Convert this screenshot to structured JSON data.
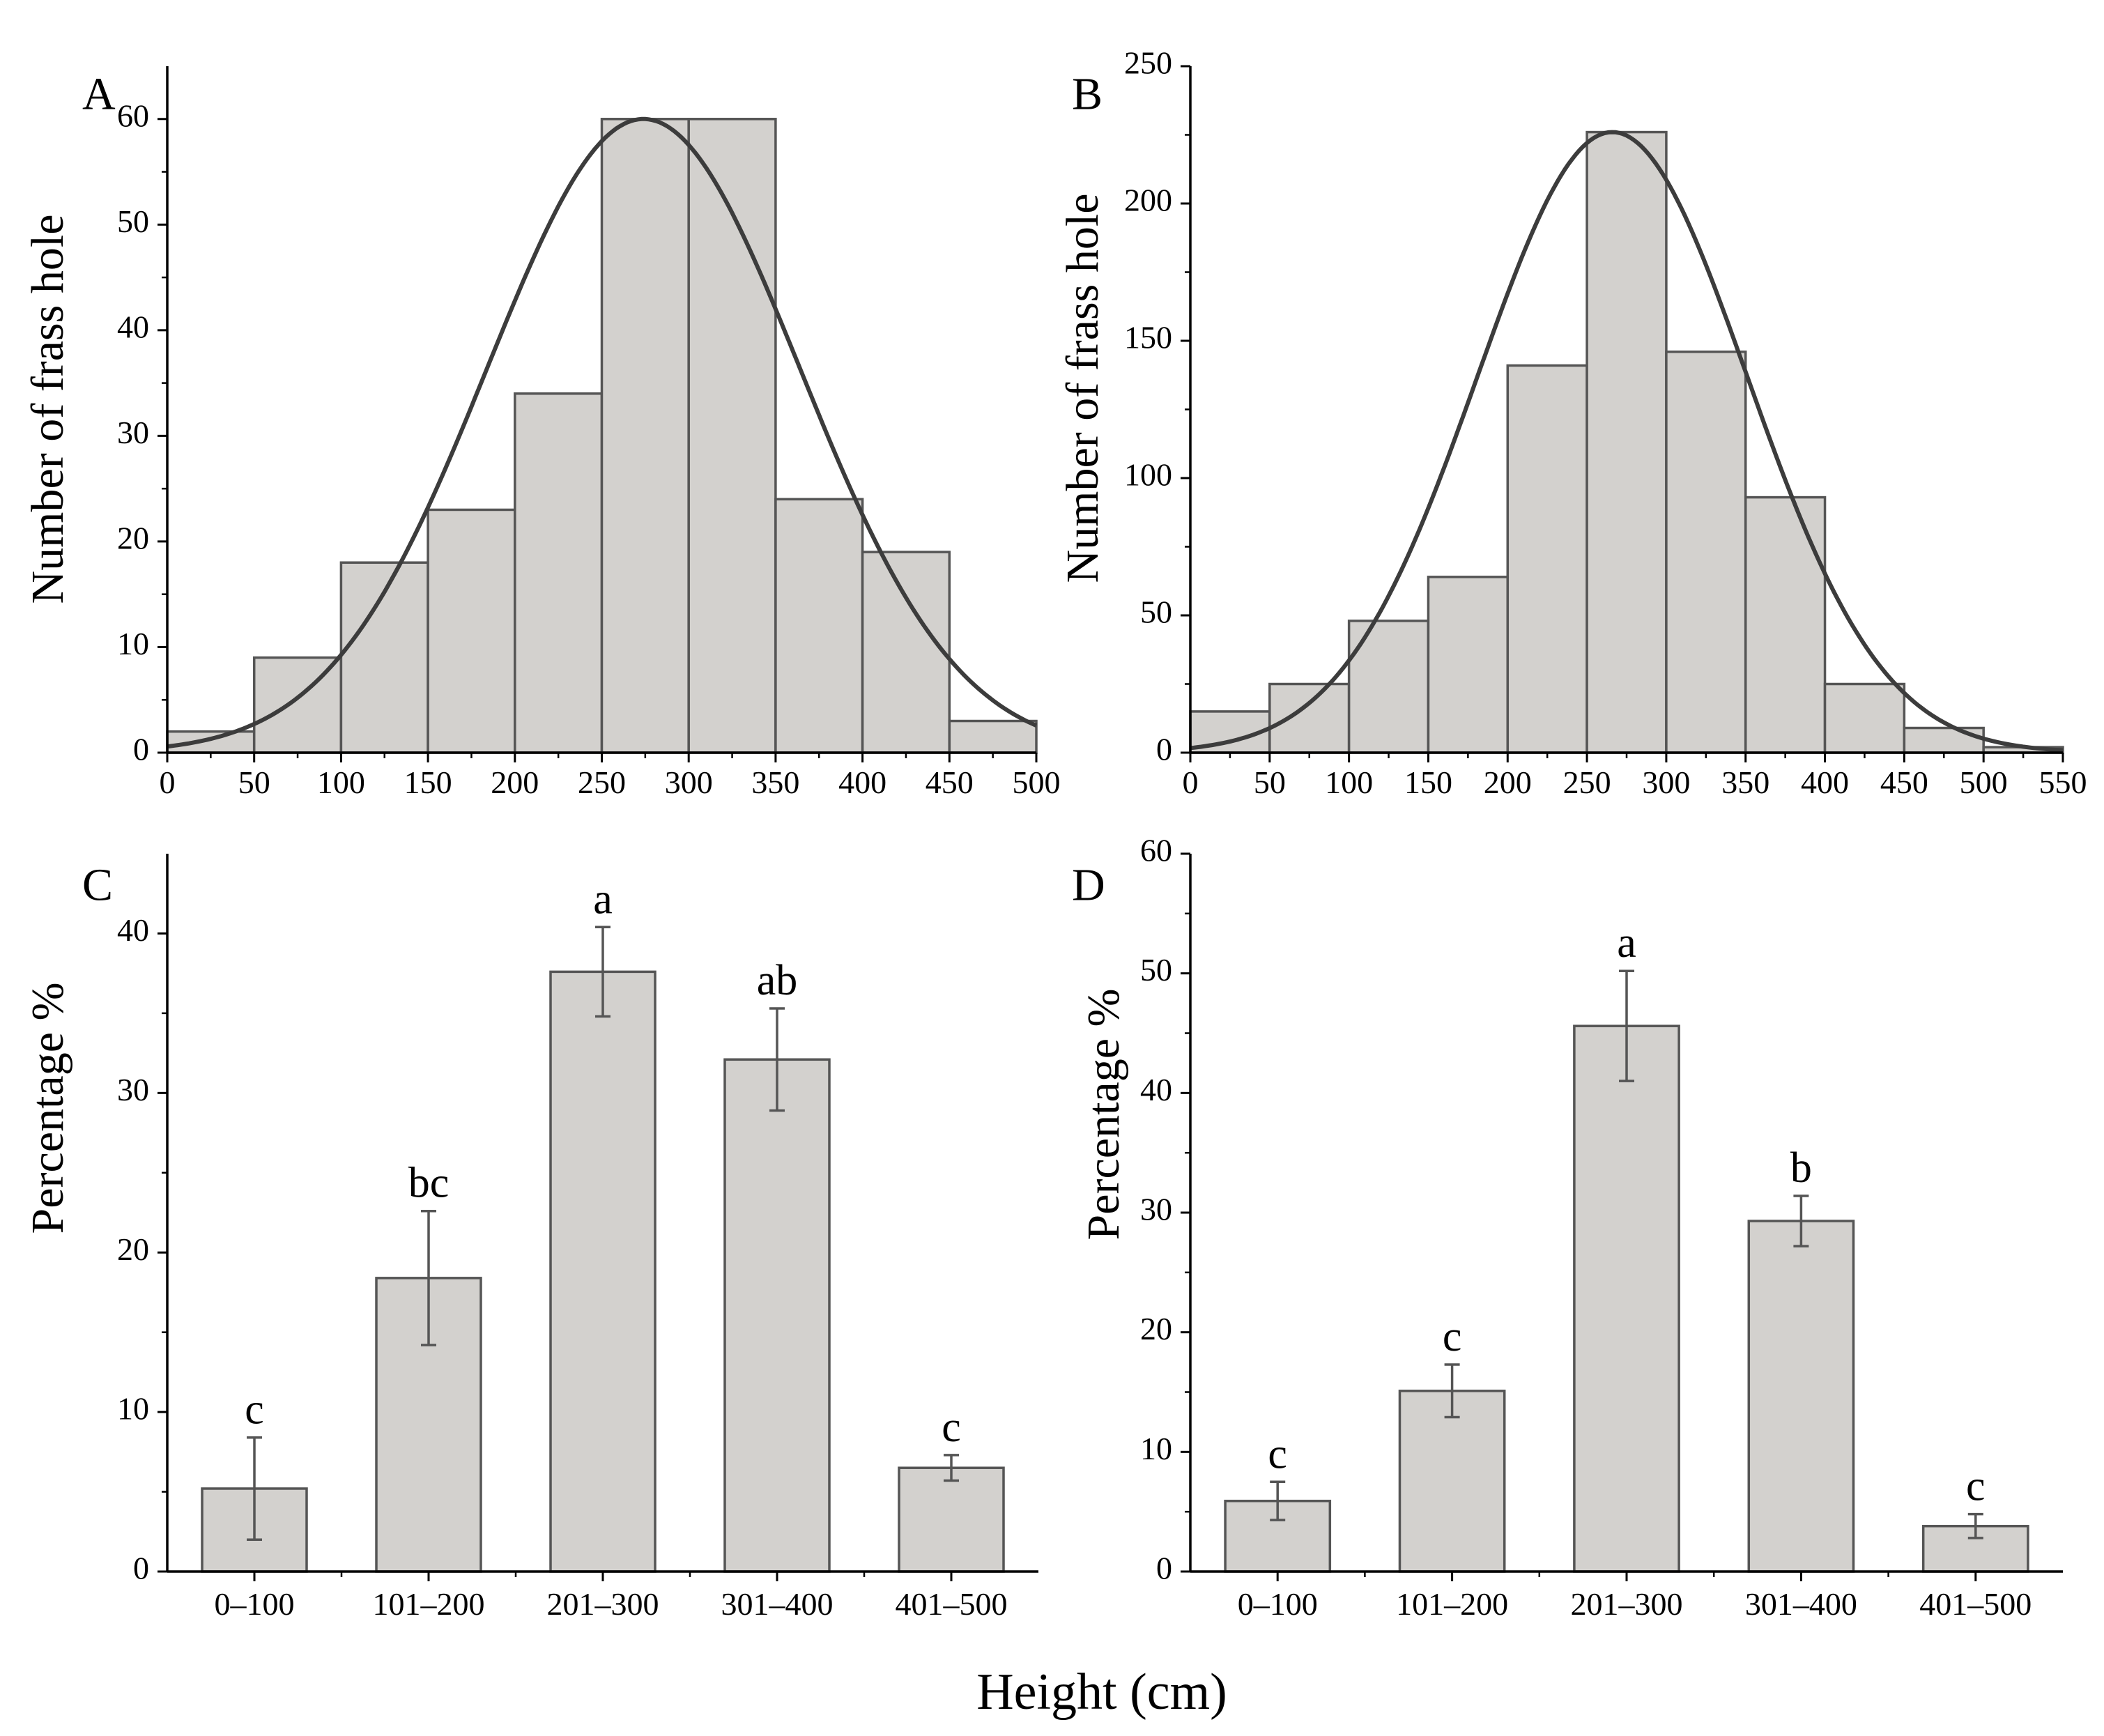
{
  "figure": {
    "shared_xlabel": "Height (cm)"
  },
  "colors": {
    "bar_fill": "#d3d1ce",
    "bar_stroke": "#555555",
    "curve": "#3c3c3c",
    "axis": "#000000"
  },
  "chart_data": [
    {
      "panel": "A",
      "type": "bar",
      "subtype": "histogram",
      "title": "",
      "xlabel": "",
      "ylabel": "Number of frass hole",
      "xlim": [
        0,
        500
      ],
      "ylim": [
        0,
        65
      ],
      "x_ticks": [
        0,
        50,
        100,
        150,
        200,
        250,
        300,
        350,
        400,
        450,
        500
      ],
      "y_ticks": [
        0,
        10,
        20,
        30,
        40,
        50,
        60
      ],
      "bins": [
        {
          "from": 0,
          "to": 50,
          "value": 2
        },
        {
          "from": 50,
          "to": 100,
          "value": 9
        },
        {
          "from": 100,
          "to": 150,
          "value": 18
        },
        {
          "from": 150,
          "to": 200,
          "value": 23
        },
        {
          "from": 200,
          "to": 250,
          "value": 34
        },
        {
          "from": 250,
          "to": 300,
          "value": 60
        },
        {
          "from": 300,
          "to": 350,
          "value": 60
        },
        {
          "from": 350,
          "to": 400,
          "value": 24
        },
        {
          "from": 400,
          "to": 450,
          "value": 19
        },
        {
          "from": 450,
          "to": 500,
          "value": 3
        }
      ],
      "normal_fit": {
        "mean": 274,
        "sd": 90,
        "peak": 60
      }
    },
    {
      "panel": "B",
      "type": "bar",
      "subtype": "histogram",
      "title": "",
      "xlabel": "",
      "ylabel": "Number of frass hole",
      "xlim": [
        0,
        550
      ],
      "ylim": [
        0,
        250
      ],
      "x_ticks": [
        0,
        50,
        100,
        150,
        200,
        250,
        300,
        350,
        400,
        450,
        500,
        550
      ],
      "y_ticks": [
        0,
        50,
        100,
        150,
        200,
        250
      ],
      "bins": [
        {
          "from": 0,
          "to": 50,
          "value": 15
        },
        {
          "from": 50,
          "to": 100,
          "value": 25
        },
        {
          "from": 100,
          "to": 150,
          "value": 48
        },
        {
          "from": 150,
          "to": 200,
          "value": 64
        },
        {
          "from": 200,
          "to": 250,
          "value": 141
        },
        {
          "from": 250,
          "to": 300,
          "value": 226
        },
        {
          "from": 300,
          "to": 350,
          "value": 146
        },
        {
          "from": 350,
          "to": 400,
          "value": 93
        },
        {
          "from": 400,
          "to": 450,
          "value": 25
        },
        {
          "from": 450,
          "to": 500,
          "value": 9
        },
        {
          "from": 500,
          "to": 550,
          "value": 2
        }
      ],
      "normal_fit": {
        "mean": 266,
        "sd": 85,
        "peak": 226
      }
    },
    {
      "panel": "C",
      "type": "bar",
      "title": "",
      "xlabel": "",
      "ylabel": "Percentage %",
      "ylim": [
        0,
        45
      ],
      "y_ticks": [
        0,
        10,
        20,
        30,
        40
      ],
      "categories": [
        "0–100",
        "101–200",
        "201–300",
        "301–400",
        "401–500"
      ],
      "values": [
        5.2,
        18.4,
        37.6,
        32.1,
        6.5
      ],
      "errors": [
        3.2,
        4.2,
        2.8,
        3.2,
        0.8
      ],
      "letters": [
        "c",
        "bc",
        "a",
        "ab",
        "c"
      ]
    },
    {
      "panel": "D",
      "type": "bar",
      "title": "",
      "xlabel": "",
      "ylabel": "Percentage %",
      "ylim": [
        0,
        60
      ],
      "y_ticks": [
        0,
        10,
        20,
        30,
        40,
        50,
        60
      ],
      "categories": [
        "0–100",
        "101–200",
        "201–300",
        "301–400",
        "401–500"
      ],
      "values": [
        5.9,
        15.1,
        45.6,
        29.3,
        3.8
      ],
      "errors": [
        1.6,
        2.2,
        4.6,
        2.1,
        1.0
      ],
      "letters": [
        "c",
        "c",
        "a",
        "b",
        "c"
      ]
    }
  ]
}
